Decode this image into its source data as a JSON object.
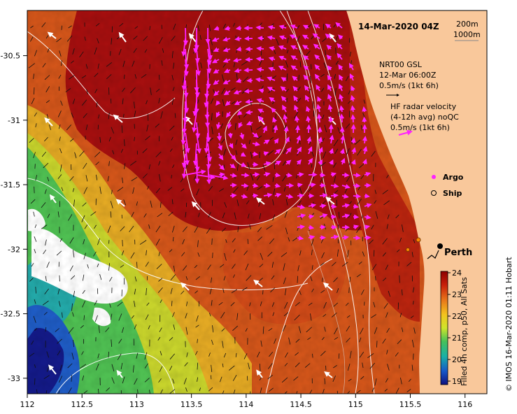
{
  "title": "14-Mar-2020 04Z",
  "contour_labels": [
    "200m",
    "1000m"
  ],
  "legend": {
    "model_lines": [
      "NRT00 GSL",
      "12-Mar 06:00Z",
      "0.5m/s (1kt 6h)"
    ],
    "radar_lines": [
      "HF radar velocity",
      "(4-12h avg) noQC",
      "0.5m/s (1kt 6h)"
    ],
    "argo_label": "Argo",
    "ship_label": "Ship"
  },
  "city_label": "Perth",
  "colorbar": {
    "ticks": [
      "24",
      "23",
      "22",
      "21",
      "20",
      "19"
    ],
    "caption": "Filled 4h comp, p50, All Sats"
  },
  "credit": "© IMOS 16-Mar-2020 01:11 Hobart",
  "axes": {
    "x_ticks": [
      "112",
      "112.5",
      "113",
      "113.5",
      "114",
      "114.5",
      "115",
      "115.5",
      "116"
    ],
    "y_ticks": [
      "-30.5",
      "-31",
      "-31.5",
      "-32",
      "-32.5",
      "-33"
    ]
  },
  "colors": {
    "land": "#f9c89b",
    "warm": "#a50f0f",
    "radar_vector": "#ff22ff",
    "contour": "#ffffff"
  }
}
